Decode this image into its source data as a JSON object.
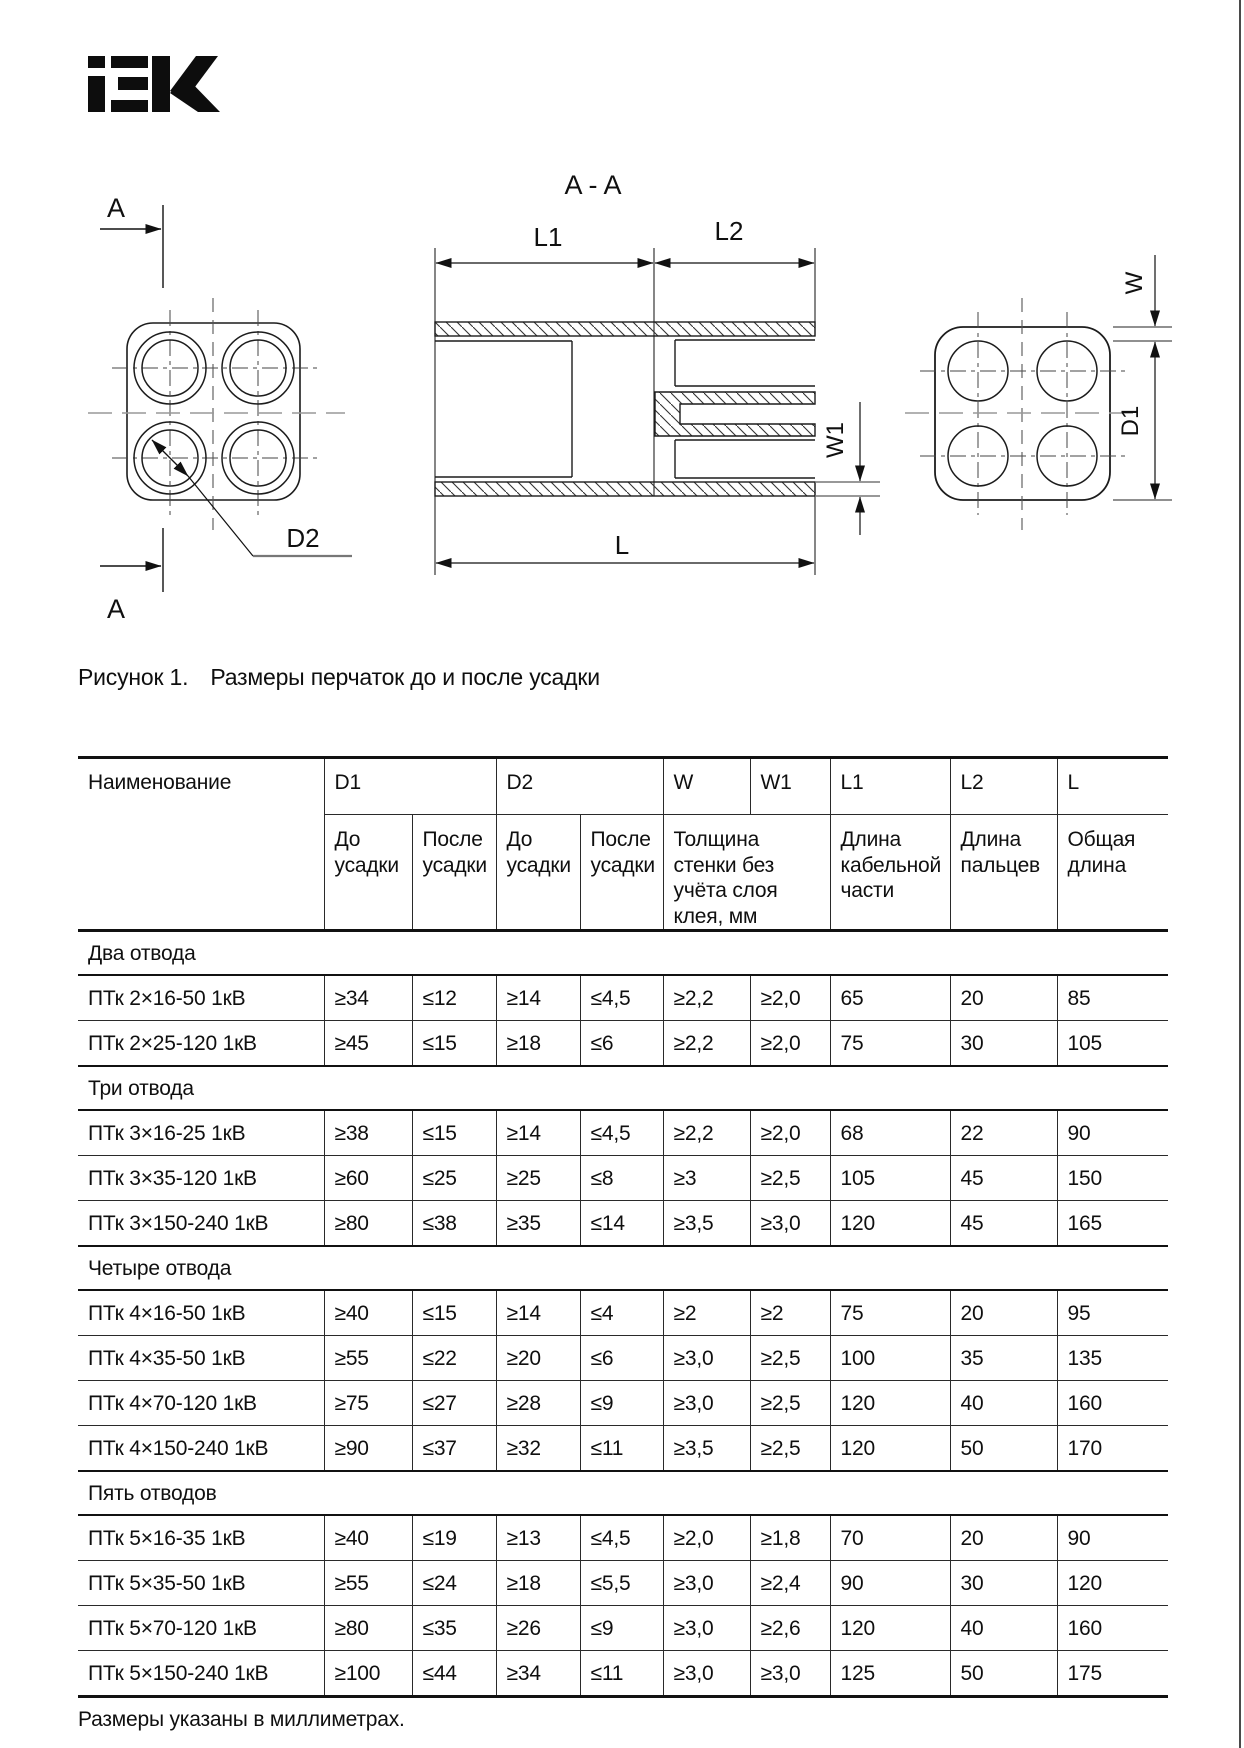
{
  "logo": {
    "brand": "IEK"
  },
  "figure": {
    "caption_label": "Рисунок 1.",
    "caption_text": "Размеры перчаток до и после усадки",
    "labels": {
      "section_top": "A",
      "section_bottom": "A",
      "section_view": "A - A",
      "l1": "L1",
      "l2": "L2",
      "l": "L",
      "w": "W",
      "w1": "W1",
      "d1": "D1",
      "d2": "D2"
    }
  },
  "table": {
    "header": {
      "name": "Наименование",
      "d1": "D1",
      "d2": "D2",
      "w": "W",
      "w1": "W1",
      "l1": "L1",
      "l2": "L2",
      "l": "L",
      "d1_before": "До усадки",
      "d1_after": "После усадки",
      "d2_before": "До усадки",
      "d2_after": "После усадки",
      "wall": "Толщина стенки без учёта слоя клея, мм",
      "l1_sub": "Длина кабельной части",
      "l2_sub": "Длина пальцев",
      "l_sub": "Общая длина"
    },
    "groups": [
      {
        "label": "Два отвода",
        "rows": [
          {
            "name": "ПТк 2×16-50 1кВ",
            "values": [
              "≥34",
              "≤12",
              "≥14",
              "≤4,5",
              "≥2,2",
              "≥2,0",
              "65",
              "20",
              "85"
            ]
          },
          {
            "name": "ПТк 2×25-120 1кВ",
            "values": [
              "≥45",
              "≤15",
              "≥18",
              "≤6",
              "≥2,2",
              "≥2,0",
              "75",
              "30",
              "105"
            ]
          }
        ]
      },
      {
        "label": "Три отвода",
        "rows": [
          {
            "name": "ПТк 3×16-25 1кВ",
            "values": [
              "≥38",
              "≤15",
              "≥14",
              "≤4,5",
              "≥2,2",
              "≥2,0",
              "68",
              "22",
              "90"
            ]
          },
          {
            "name": "ПТк 3×35-120 1кВ",
            "values": [
              "≥60",
              "≤25",
              "≥25",
              "≤8",
              "≥3",
              "≥2,5",
              "105",
              "45",
              "150"
            ]
          },
          {
            "name": "ПТк 3×150-240 1кВ",
            "values": [
              "≥80",
              "≤38",
              "≥35",
              "≤14",
              "≥3,5",
              "≥3,0",
              "120",
              "45",
              "165"
            ]
          }
        ]
      },
      {
        "label": "Четыре отвода",
        "rows": [
          {
            "name": "ПТк 4×16-50 1кВ",
            "values": [
              "≥40",
              "≤15",
              "≥14",
              "≤4",
              "≥2",
              "≥2",
              "75",
              "20",
              "95"
            ]
          },
          {
            "name": "ПТк 4×35-50 1кВ",
            "values": [
              "≥55",
              "≤22",
              "≥20",
              "≤6",
              "≥3,0",
              "≥2,5",
              "100",
              "35",
              "135"
            ]
          },
          {
            "name": "ПТк 4×70-120 1кВ",
            "values": [
              "≥75",
              "≤27",
              "≥28",
              "≤9",
              "≥3,0",
              "≥2,5",
              "120",
              "40",
              "160"
            ]
          },
          {
            "name": "ПТк 4×150-240 1кВ",
            "values": [
              "≥90",
              "≤37",
              "≥32",
              "≤11",
              "≥3,5",
              "≥2,5",
              "120",
              "50",
              "170"
            ]
          }
        ]
      },
      {
        "label": "Пять отводов",
        "rows": [
          {
            "name": "ПТк 5×16-35 1кВ",
            "values": [
              "≥40",
              "≤19",
              "≥13",
              "≤4,5",
              "≥2,0",
              "≥1,8",
              "70",
              "20",
              "90"
            ]
          },
          {
            "name": "ПТк 5×35-50 1кВ",
            "values": [
              "≥55",
              "≤24",
              "≥18",
              "≤5,5",
              "≥3,0",
              "≥2,4",
              "90",
              "30",
              "120"
            ]
          },
          {
            "name": "ПТк 5×70-120 1кВ",
            "values": [
              "≥80",
              "≤35",
              "≥26",
              "≤9",
              "≥3,0",
              "≥2,6",
              "120",
              "40",
              "160"
            ]
          },
          {
            "name": "ПТк 5×150-240 1кВ",
            "values": [
              "≥100",
              "≤44",
              "≥34",
              "≤11",
              "≥3,0",
              "≥3,0",
              "125",
              "50",
              "175"
            ]
          }
        ]
      }
    ],
    "footnote": "Размеры указаны в миллиметрах."
  }
}
